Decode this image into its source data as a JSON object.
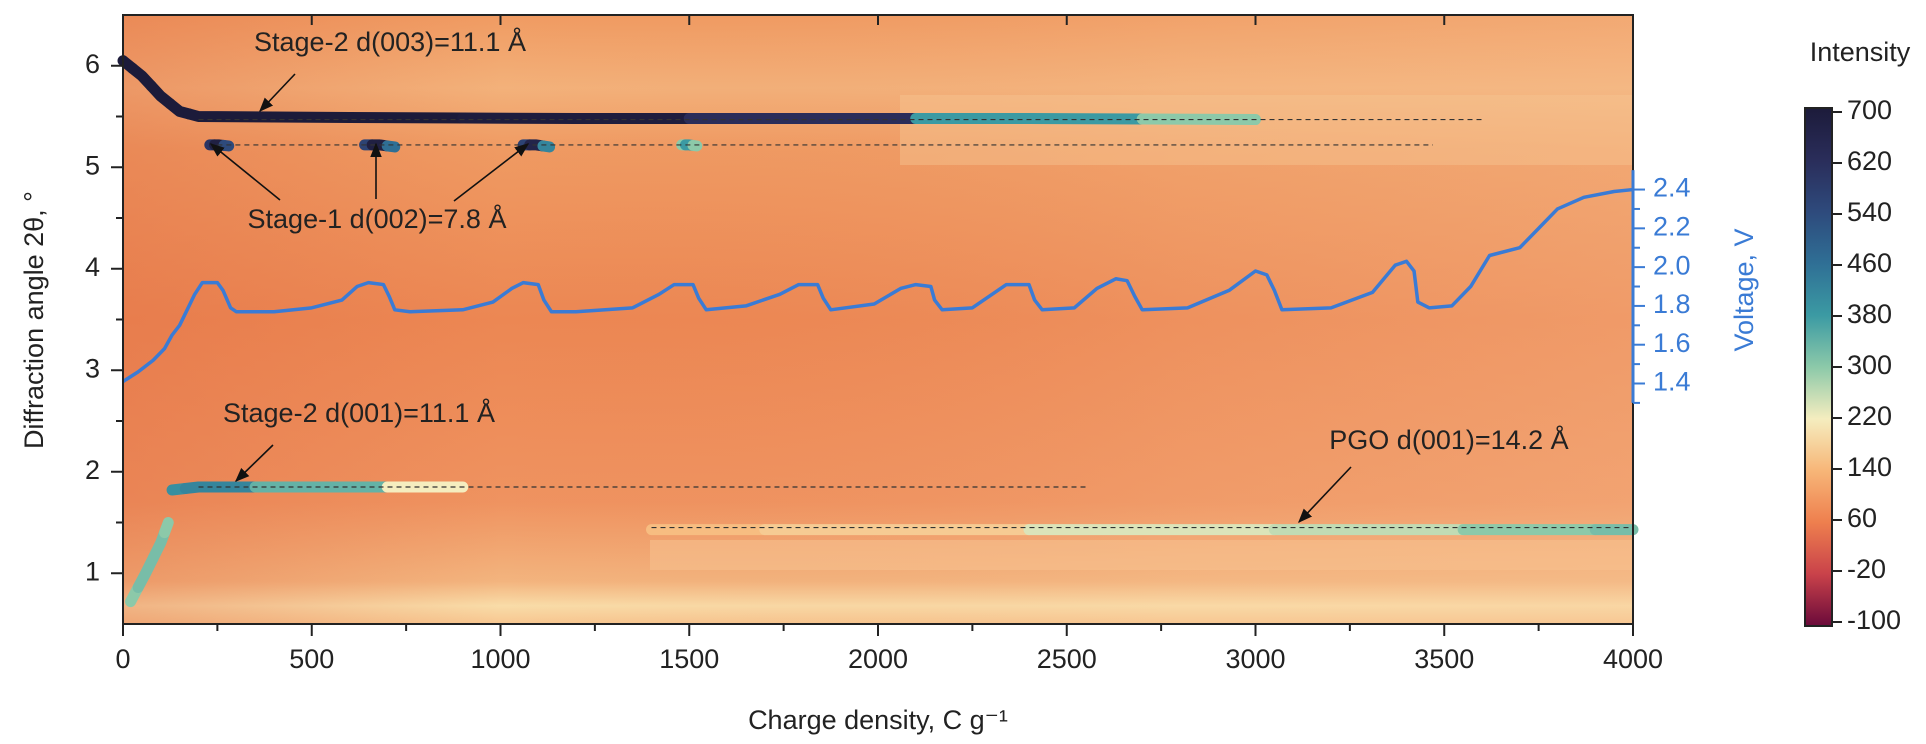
{
  "chart_data": {
    "type": "heatmap-line",
    "xlabel": "Charge density, C g⁻¹",
    "ylabel": "Diffraction angle 2θ, °",
    "y2label": "Voltage, V",
    "xlim": [
      0,
      4000
    ],
    "xticks": [
      0,
      500,
      1000,
      1500,
      2000,
      2500,
      3000,
      3500,
      4000
    ],
    "ylim": [
      0.5,
      6.5
    ],
    "yticks": [
      1,
      2,
      3,
      4,
      5,
      6
    ],
    "y2lim": [
      0.16,
      3.3
    ],
    "y2ticks": [
      {
        "value": 1.4,
        "label": "1.4"
      },
      {
        "value": 1.6,
        "label": "1.6"
      },
      {
        "value": 1.8,
        "label": "1.8"
      },
      {
        "value": 2.0,
        "label": "2.0"
      },
      {
        "value": 2.2,
        "label": "2.2"
      },
      {
        "value": 2.4,
        "label": "2.4"
      }
    ],
    "colorbar": {
      "title": "Intensity",
      "ticks": [
        700,
        620,
        540,
        460,
        380,
        300,
        220,
        140,
        60,
        -20,
        -100
      ],
      "colors": [
        "#1c1b3a",
        "#2a2d5a",
        "#2e4a7c",
        "#2f6f95",
        "#3b9aa3",
        "#8cc9a9",
        "#f5edbf",
        "#f7b678",
        "#ee7f4e",
        "#c9424a",
        "#6a0a3a"
      ]
    },
    "bands": [
      {
        "x": [
          0,
          50,
          100,
          150,
          200,
          600,
          1200,
          1800,
          2400,
          3000
        ],
        "values": [
          6.05,
          5.9,
          5.7,
          5.55,
          5.5,
          5.49,
          5.48,
          5.48,
          5.48,
          5.47
        ],
        "intensity": [
          700,
          700,
          700,
          700,
          700,
          700,
          690,
          620,
          380,
          300
        ]
      },
      {
        "x": [
          230,
          255,
          280
        ],
        "values": [
          5.22,
          5.22,
          5.21
        ],
        "intensity": [
          600,
          680,
          540
        ]
      },
      {
        "x": [
          640,
          680,
          720
        ],
        "values": [
          5.22,
          5.22,
          5.2
        ],
        "intensity": [
          560,
          680,
          460
        ]
      },
      {
        "x": [
          1060,
          1095,
          1130
        ],
        "values": [
          5.22,
          5.22,
          5.2
        ],
        "intensity": [
          560,
          660,
          420
        ]
      },
      {
        "x": [
          1480,
          1500,
          1520
        ],
        "values": [
          5.22,
          5.22,
          5.21
        ],
        "intensity": [
          300,
          380,
          300
        ]
      },
      {
        "x": [
          20,
          60,
          100,
          120
        ],
        "values": [
          0.72,
          1.0,
          1.3,
          1.5
        ],
        "intensity": [
          300,
          320,
          320,
          300
        ]
      },
      {
        "x": [
          130,
          200,
          500,
          900
        ],
        "values": [
          1.82,
          1.85,
          1.85,
          1.85
        ],
        "intensity": [
          400,
          420,
          340,
          220
        ]
      },
      {
        "x": [
          1400,
          2000,
          2800,
          3300,
          3800,
          4000
        ],
        "values": [
          1.43,
          1.43,
          1.43,
          1.43,
          1.43,
          1.43
        ],
        "intensity": [
          150,
          170,
          240,
          260,
          300,
          320
        ]
      }
    ],
    "reference_lines": [
      {
        "y": 5.47,
        "x": [
          200,
          3600
        ]
      },
      {
        "y": 5.22,
        "x": [
          250,
          3470
        ]
      },
      {
        "y": 1.85,
        "x": [
          200,
          2550
        ]
      },
      {
        "y": 1.45,
        "x": [
          1400,
          4000
        ]
      }
    ],
    "voltage": {
      "axis": "y2",
      "color": "#3a7bd5",
      "x": [
        0,
        40,
        80,
        110,
        130,
        150,
        170,
        190,
        210,
        250,
        265,
        285,
        300,
        400,
        500,
        580,
        620,
        650,
        690,
        705,
        720,
        760,
        900,
        980,
        1030,
        1060,
        1100,
        1115,
        1135,
        1200,
        1350,
        1420,
        1460,
        1510,
        1525,
        1545,
        1650,
        1740,
        1790,
        1840,
        1855,
        1875,
        1990,
        2060,
        2100,
        2140,
        2150,
        2170,
        2250,
        2310,
        2340,
        2400,
        2415,
        2435,
        2520,
        2580,
        2630,
        2660,
        2680,
        2700,
        2820,
        2930,
        3000,
        3030,
        3050,
        3070,
        3200,
        3310,
        3370,
        3400,
        3420,
        3430,
        3460,
        3520,
        3570,
        3620,
        3700,
        3750,
        3800,
        3870,
        3950,
        4000
      ],
      "values": [
        1.41,
        1.46,
        1.52,
        1.58,
        1.65,
        1.7,
        1.78,
        1.86,
        1.92,
        1.92,
        1.88,
        1.79,
        1.77,
        1.77,
        1.79,
        1.83,
        1.9,
        1.92,
        1.91,
        1.85,
        1.78,
        1.77,
        1.78,
        1.82,
        1.89,
        1.92,
        1.91,
        1.83,
        1.77,
        1.77,
        1.79,
        1.86,
        1.91,
        1.91,
        1.84,
        1.78,
        1.8,
        1.86,
        1.91,
        1.91,
        1.84,
        1.78,
        1.81,
        1.89,
        1.91,
        1.9,
        1.83,
        1.78,
        1.79,
        1.87,
        1.91,
        1.91,
        1.83,
        1.78,
        1.79,
        1.89,
        1.94,
        1.93,
        1.85,
        1.78,
        1.79,
        1.88,
        1.98,
        1.96,
        1.88,
        1.78,
        1.79,
        1.87,
        2.01,
        2.03,
        1.98,
        1.82,
        1.79,
        1.8,
        1.9,
        2.06,
        2.1,
        2.2,
        2.3,
        2.36,
        2.39,
        2.4
      ]
    },
    "annotations": [
      "Stage-2 d(003)=11.1 Å",
      "Stage-1 d(002)=7.8 Å",
      "Stage-2 d(001)=11.1 Å",
      "PGO d(001)=14.2 Å"
    ]
  }
}
